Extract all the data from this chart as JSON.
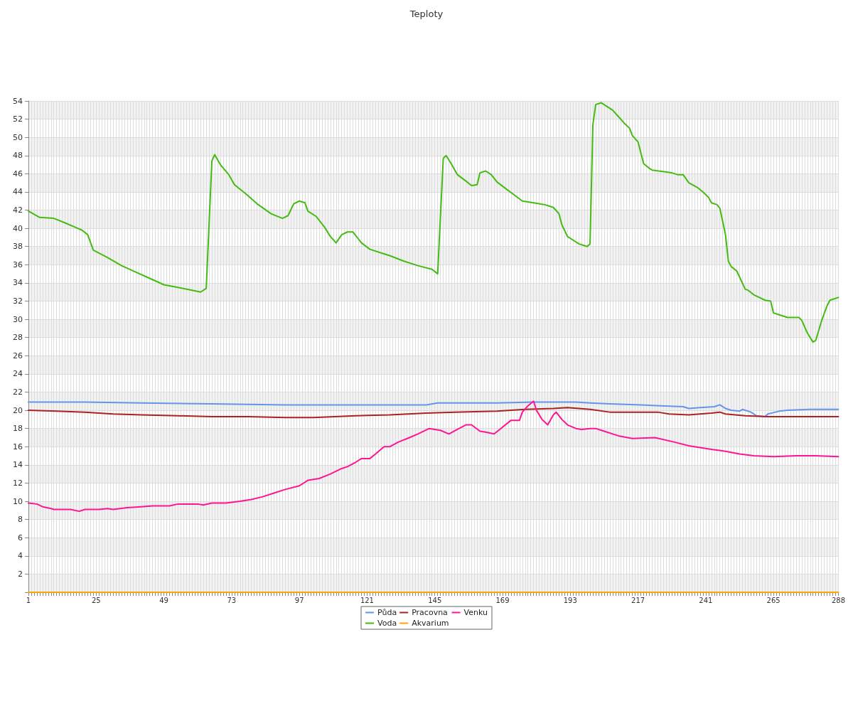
{
  "chart_data": {
    "type": "line",
    "title": "Teploty",
    "legend": "bottom",
    "grid": true,
    "marker": "none",
    "line_style": "solid",
    "xlim": [
      1,
      288
    ],
    "xticks": [
      1,
      {
        "value": 2,
        "label": null
      },
      {
        "value": 3,
        "label": null
      },
      {
        "value": 4,
        "label": null
      },
      {
        "value": 5,
        "label": null
      },
      {
        "value": 6,
        "label": null
      },
      {
        "value": 7,
        "label": null
      },
      {
        "value": 8,
        "label": null
      },
      {
        "value": 9,
        "label": null
      },
      {
        "value": 10,
        "label": null
      },
      {
        "value": 11,
        "label": null
      },
      {
        "value": 12,
        "label": null
      },
      {
        "value": 13,
        "label": null
      },
      {
        "value": 14,
        "label": null
      },
      {
        "value": 15,
        "label": null
      },
      {
        "value": 16,
        "label": null
      },
      {
        "value": 17,
        "label": null
      },
      {
        "value": 18,
        "label": null
      },
      {
        "value": 19,
        "label": null
      },
      {
        "value": 20,
        "label": null
      },
      {
        "value": 21,
        "label": null
      },
      {
        "value": 22,
        "label": null
      },
      {
        "value": 23,
        "label": null
      },
      {
        "value": 24,
        "label": null
      },
      25,
      {
        "value": 26,
        "label": null
      },
      {
        "value": 27,
        "label": null
      },
      {
        "value": 28,
        "label": null
      },
      {
        "value": 29,
        "label": null
      },
      {
        "value": 30,
        "label": null
      },
      {
        "value": 31,
        "label": null
      },
      {
        "value": 32,
        "label": null
      },
      {
        "value": 33,
        "label": null
      },
      {
        "value": 34,
        "label": null
      },
      {
        "value": 35,
        "label": null
      },
      {
        "value": 36,
        "label": null
      },
      {
        "value": 37,
        "label": null
      },
      {
        "value": 38,
        "label": null
      },
      {
        "value": 39,
        "label": null
      },
      {
        "value": 40,
        "label": null
      },
      {
        "value": 41,
        "label": null
      },
      {
        "value": 42,
        "label": null
      },
      {
        "value": 43,
        "label": null
      },
      {
        "value": 44,
        "label": null
      },
      {
        "value": 45,
        "label": null
      },
      {
        "value": 46,
        "label": null
      },
      {
        "value": 47,
        "label": null
      },
      {
        "value": 48,
        "label": null
      },
      49,
      {
        "value": 50,
        "label": null
      },
      {
        "value": 51,
        "label": null
      },
      {
        "value": 52,
        "label": null
      },
      {
        "value": 53,
        "label": null
      },
      {
        "value": 54,
        "label": null
      },
      {
        "value": 55,
        "label": null
      },
      {
        "value": 56,
        "label": null
      },
      {
        "value": 57,
        "label": null
      },
      {
        "value": 58,
        "label": null
      },
      {
        "value": 59,
        "label": null
      },
      {
        "value": 60,
        "label": null
      },
      {
        "value": 61,
        "label": null
      },
      {
        "value": 62,
        "label": null
      },
      {
        "value": 63,
        "label": null
      },
      {
        "value": 64,
        "label": null
      },
      {
        "value": 65,
        "label": null
      },
      {
        "value": 66,
        "label": null
      },
      {
        "value": 67,
        "label": null
      },
      {
        "value": 68,
        "label": null
      },
      {
        "value": 69,
        "label": null
      },
      {
        "value": 70,
        "label": null
      },
      {
        "value": 71,
        "label": null
      },
      {
        "value": 72,
        "label": null
      },
      73,
      {
        "value": 74,
        "label": null
      },
      {
        "value": 75,
        "label": null
      },
      {
        "value": 76,
        "label": null
      },
      {
        "value": 77,
        "label": null
      },
      {
        "value": 78,
        "label": null
      },
      {
        "value": 79,
        "label": null
      },
      {
        "value": 80,
        "label": null
      },
      {
        "value": 81,
        "label": null
      },
      {
        "value": 82,
        "label": null
      },
      {
        "value": 83,
        "label": null
      },
      {
        "value": 84,
        "label": null
      },
      {
        "value": 85,
        "label": null
      },
      {
        "value": 86,
        "label": null
      },
      {
        "value": 87,
        "label": null
      },
      {
        "value": 88,
        "label": null
      },
      {
        "value": 89,
        "label": null
      },
      {
        "value": 90,
        "label": null
      },
      {
        "value": 91,
        "label": null
      },
      {
        "value": 92,
        "label": null
      },
      {
        "value": 93,
        "label": null
      },
      {
        "value": 94,
        "label": null
      },
      {
        "value": 95,
        "label": null
      },
      {
        "value": 96,
        "label": null
      },
      97,
      {
        "value": 98,
        "label": null
      },
      {
        "value": 99,
        "label": null
      },
      {
        "value": 100,
        "label": null
      },
      {
        "value": 101,
        "label": null
      },
      {
        "value": 102,
        "label": null
      },
      {
        "value": 103,
        "label": null
      },
      {
        "value": 104,
        "label": null
      },
      {
        "value": 105,
        "label": null
      },
      {
        "value": 106,
        "label": null
      },
      {
        "value": 107,
        "label": null
      },
      {
        "value": 108,
        "label": null
      },
      {
        "value": 109,
        "label": null
      },
      {
        "value": 110,
        "label": null
      },
      {
        "value": 111,
        "label": null
      },
      {
        "value": 112,
        "label": null
      },
      {
        "value": 113,
        "label": null
      },
      {
        "value": 114,
        "label": null
      },
      {
        "value": 115,
        "label": null
      },
      {
        "value": 116,
        "label": null
      },
      {
        "value": 117,
        "label": null
      },
      {
        "value": 118,
        "label": null
      },
      {
        "value": 119,
        "label": null
      },
      {
        "value": 120,
        "label": null
      },
      121,
      {
        "value": 122,
        "label": null
      },
      {
        "value": 123,
        "label": null
      },
      {
        "value": 124,
        "label": null
      },
      {
        "value": 125,
        "label": null
      },
      {
        "value": 126,
        "label": null
      },
      {
        "value": 127,
        "label": null
      },
      {
        "value": 128,
        "label": null
      },
      {
        "value": 129,
        "label": null
      },
      {
        "value": 130,
        "label": null
      },
      {
        "value": 131,
        "label": null
      },
      {
        "value": 132,
        "label": null
      },
      {
        "value": 133,
        "label": null
      },
      {
        "value": 134,
        "label": null
      },
      {
        "value": 135,
        "label": null
      },
      {
        "value": 136,
        "label": null
      },
      {
        "value": 137,
        "label": null
      },
      {
        "value": 138,
        "label": null
      },
      {
        "value": 139,
        "label": null
      },
      {
        "value": 140,
        "label": null
      },
      {
        "value": 141,
        "label": null
      },
      {
        "value": 142,
        "label": null
      },
      {
        "value": 143,
        "label": null
      },
      {
        "value": 144,
        "label": null
      },
      145,
      {
        "value": 146,
        "label": null
      },
      {
        "value": 147,
        "label": null
      },
      {
        "value": 148,
        "label": null
      },
      {
        "value": 149,
        "label": null
      },
      {
        "value": 150,
        "label": null
      },
      {
        "value": 151,
        "label": null
      },
      {
        "value": 152,
        "label": null
      },
      {
        "value": 153,
        "label": null
      },
      {
        "value": 154,
        "label": null
      },
      {
        "value": 155,
        "label": null
      },
      {
        "value": 156,
        "label": null
      },
      {
        "value": 157,
        "label": null
      },
      {
        "value": 158,
        "label": null
      },
      {
        "value": 159,
        "label": null
      },
      {
        "value": 160,
        "label": null
      },
      {
        "value": 161,
        "label": null
      },
      {
        "value": 162,
        "label": null
      },
      {
        "value": 163,
        "label": null
      },
      {
        "value": 164,
        "label": null
      },
      {
        "value": 165,
        "label": null
      },
      {
        "value": 166,
        "label": null
      },
      {
        "value": 167,
        "label": null
      },
      {
        "value": 168,
        "label": null
      },
      169,
      {
        "value": 170,
        "label": null
      },
      {
        "value": 171,
        "label": null
      },
      {
        "value": 172,
        "label": null
      },
      {
        "value": 173,
        "label": null
      },
      {
        "value": 174,
        "label": null
      },
      {
        "value": 175,
        "label": null
      },
      {
        "value": 176,
        "label": null
      },
      {
        "value": 177,
        "label": null
      },
      {
        "value": 178,
        "label": null
      },
      {
        "value": 179,
        "label": null
      },
      {
        "value": 180,
        "label": null
      },
      {
        "value": 181,
        "label": null
      },
      {
        "value": 182,
        "label": null
      },
      {
        "value": 183,
        "label": null
      },
      {
        "value": 184,
        "label": null
      },
      {
        "value": 185,
        "label": null
      },
      {
        "value": 186,
        "label": null
      },
      {
        "value": 187,
        "label": null
      },
      {
        "value": 188,
        "label": null
      },
      {
        "value": 189,
        "label": null
      },
      {
        "value": 190,
        "label": null
      },
      {
        "value": 191,
        "label": null
      },
      {
        "value": 192,
        "label": null
      },
      193,
      {
        "value": 194,
        "label": null
      },
      {
        "value": 195,
        "label": null
      },
      {
        "value": 196,
        "label": null
      },
      {
        "value": 197,
        "label": null
      },
      {
        "value": 198,
        "label": null
      },
      {
        "value": 199,
        "label": null
      },
      {
        "value": 200,
        "label": null
      },
      {
        "value": 201,
        "label": null
      },
      {
        "value": 202,
        "label": null
      },
      {
        "value": 203,
        "label": null
      },
      {
        "value": 204,
        "label": null
      },
      {
        "value": 205,
        "label": null
      },
      {
        "value": 206,
        "label": null
      },
      {
        "value": 207,
        "label": null
      },
      {
        "value": 208,
        "label": null
      },
      {
        "value": 209,
        "label": null
      },
      {
        "value": 210,
        "label": null
      },
      {
        "value": 211,
        "label": null
      },
      {
        "value": 212,
        "label": null
      },
      {
        "value": 213,
        "label": null
      },
      {
        "value": 214,
        "label": null
      },
      {
        "value": 215,
        "label": null
      },
      {
        "value": 216,
        "label": null
      },
      217,
      {
        "value": 218,
        "label": null
      },
      {
        "value": 219,
        "label": null
      },
      {
        "value": 220,
        "label": null
      },
      {
        "value": 221,
        "label": null
      },
      {
        "value": 222,
        "label": null
      },
      {
        "value": 223,
        "label": null
      },
      {
        "value": 224,
        "label": null
      },
      {
        "value": 225,
        "label": null
      },
      {
        "value": 226,
        "label": null
      },
      {
        "value": 227,
        "label": null
      },
      {
        "value": 228,
        "label": null
      },
      {
        "value": 229,
        "label": null
      },
      {
        "value": 230,
        "label": null
      },
      {
        "value": 231,
        "label": null
      },
      {
        "value": 232,
        "label": null
      },
      {
        "value": 233,
        "label": null
      },
      {
        "value": 234,
        "label": null
      },
      {
        "value": 235,
        "label": null
      },
      {
        "value": 236,
        "label": null
      },
      {
        "value": 237,
        "label": null
      },
      {
        "value": 238,
        "label": null
      },
      {
        "value": 239,
        "label": null
      },
      {
        "value": 240,
        "label": null
      },
      241,
      {
        "value": 242,
        "label": null
      },
      {
        "value": 243,
        "label": null
      },
      {
        "value": 244,
        "label": null
      },
      {
        "value": 245,
        "label": null
      },
      {
        "value": 246,
        "label": null
      },
      {
        "value": 247,
        "label": null
      },
      {
        "value": 248,
        "label": null
      },
      {
        "value": 249,
        "label": null
      },
      {
        "value": 250,
        "label": null
      },
      {
        "value": 251,
        "label": null
      },
      {
        "value": 252,
        "label": null
      },
      {
        "value": 253,
        "label": null
      },
      {
        "value": 254,
        "label": null
      },
      {
        "value": 255,
        "label": null
      },
      {
        "value": 256,
        "label": null
      },
      {
        "value": 257,
        "label": null
      },
      {
        "value": 258,
        "label": null
      },
      {
        "value": 259,
        "label": null
      },
      {
        "value": 260,
        "label": null
      },
      {
        "value": 261,
        "label": null
      },
      {
        "value": 262,
        "label": null
      },
      {
        "value": 263,
        "label": null
      },
      {
        "value": 264,
        "label": null
      },
      265,
      {
        "value": 266,
        "label": null
      },
      {
        "value": 267,
        "label": null
      },
      {
        "value": 268,
        "label": null
      },
      {
        "value": 269,
        "label": null
      },
      {
        "value": 270,
        "label": null
      },
      {
        "value": 271,
        "label": null
      },
      {
        "value": 272,
        "label": null
      },
      {
        "value": 273,
        "label": null
      },
      {
        "value": 274,
        "label": null
      },
      {
        "value": 275,
        "label": null
      },
      {
        "value": 276,
        "label": null
      },
      {
        "value": 277,
        "label": null
      },
      {
        "value": 278,
        "label": null
      },
      {
        "value": 279,
        "label": null
      },
      {
        "value": 280,
        "label": null
      },
      {
        "value": 281,
        "label": null
      },
      {
        "value": 282,
        "label": null
      },
      {
        "value": 283,
        "label": null
      },
      {
        "value": 284,
        "label": null
      },
      {
        "value": 285,
        "label": null
      },
      {
        "value": 286,
        "label": null
      },
      {
        "value": 287,
        "label": null
      },
      288
    ],
    "ylim": [
      0,
      54
    ],
    "yticks": [
      {
        "value": 0,
        "label": null
      },
      2,
      4,
      6,
      8,
      10,
      12,
      14,
      16,
      18,
      20,
      22,
      24,
      26,
      28,
      30,
      32,
      34,
      36,
      38,
      40,
      42,
      44,
      46,
      48,
      50,
      52,
      54
    ],
    "series": [
      {
        "name": "Půda",
        "color": "#6495ed",
        "x": [
          1,
          21,
          41,
          66,
          92,
          142,
          146,
          167,
          180,
          195,
          200,
          207,
          218,
          225,
          233,
          235,
          239,
          244,
          246,
          248,
          250,
          253,
          254,
          257,
          259,
          262,
          263,
          267,
          270,
          278,
          288
        ],
        "values": [
          20.9,
          20.9,
          20.8,
          20.7,
          20.6,
          20.6,
          20.8,
          20.8,
          20.9,
          20.9,
          20.8,
          20.7,
          20.6,
          20.5,
          20.4,
          20.2,
          20.3,
          20.4,
          20.6,
          20.2,
          20.0,
          19.9,
          20.1,
          19.8,
          19.4,
          19.3,
          19.6,
          19.9,
          20.0,
          20.1,
          20.1
        ]
      },
      {
        "name": "Voda",
        "color": "#44bb11",
        "x": [
          1,
          5,
          10,
          14,
          17,
          20,
          22,
          24,
          29,
          34,
          39,
          44,
          49,
          54,
          59,
          62,
          64,
          66,
          67,
          69,
          72,
          74,
          78,
          82,
          87,
          91,
          93,
          95,
          97,
          99,
          100,
          103,
          106,
          108,
          110,
          112,
          114,
          116,
          118,
          119,
          122,
          126,
          129,
          134,
          139,
          144,
          146,
          148,
          149,
          151,
          153,
          156,
          158,
          160,
          161,
          163,
          165,
          167,
          170,
          173,
          176,
          180,
          184,
          187,
          189,
          190,
          192,
          194,
          196,
          199,
          200,
          201,
          202,
          204,
          208,
          210,
          212,
          214,
          215,
          217,
          218,
          219,
          221,
          222,
          229,
          231,
          233,
          235,
          238,
          240,
          242,
          243,
          245,
          246,
          248,
          249,
          250,
          252,
          255,
          256,
          258,
          260,
          262,
          264,
          265,
          267,
          270,
          274,
          275,
          277,
          279,
          280,
          282,
          284,
          285,
          288
        ],
        "values": [
          41.9,
          41.2,
          41.1,
          40.6,
          40.2,
          39.8,
          39.3,
          37.6,
          36.8,
          35.9,
          35.2,
          34.5,
          33.8,
          33.5,
          33.2,
          33.0,
          33.4,
          47.4,
          48.1,
          47.0,
          45.9,
          44.8,
          43.8,
          42.7,
          41.6,
          41.1,
          41.4,
          42.7,
          43.0,
          42.8,
          41.9,
          41.3,
          40.1,
          39.1,
          38.4,
          39.3,
          39.6,
          39.6,
          38.8,
          38.4,
          37.7,
          37.3,
          37.0,
          36.4,
          35.9,
          35.5,
          35.0,
          47.7,
          48.0,
          47.0,
          45.9,
          45.2,
          44.7,
          44.8,
          46.1,
          46.3,
          45.9,
          45.1,
          44.4,
          43.7,
          43.0,
          42.8,
          42.6,
          42.3,
          41.6,
          40.4,
          39.1,
          38.7,
          38.3,
          38.0,
          38.3,
          51.4,
          53.6,
          53.8,
          53.0,
          52.3,
          51.6,
          51.0,
          50.2,
          49.5,
          48.3,
          47.1,
          46.6,
          46.4,
          46.1,
          45.9,
          45.9,
          45.0,
          44.5,
          44.0,
          43.4,
          42.8,
          42.6,
          42.2,
          39.3,
          36.4,
          35.8,
          35.3,
          33.3,
          33.2,
          32.7,
          32.4,
          32.1,
          32.0,
          30.7,
          30.5,
          30.2,
          30.2,
          29.9,
          28.5,
          27.5,
          27.7,
          29.8,
          31.5,
          32.1,
          32.4
        ]
      },
      {
        "name": "Pracovna",
        "color": "#aa2222",
        "x": [
          1,
          11,
          21,
          31,
          41,
          54,
          66,
          79,
          92,
          102,
          117,
          129,
          142,
          152,
          167,
          177,
          187,
          192,
          200,
          207,
          218,
          224,
          228,
          235,
          243,
          246,
          248,
          255,
          263,
          273,
          288
        ],
        "values": [
          20.0,
          19.9,
          19.8,
          19.6,
          19.5,
          19.4,
          19.3,
          19.3,
          19.2,
          19.2,
          19.4,
          19.5,
          19.7,
          19.8,
          19.9,
          20.1,
          20.2,
          20.3,
          20.1,
          19.8,
          19.8,
          19.8,
          19.6,
          19.5,
          19.7,
          19.8,
          19.6,
          19.4,
          19.3,
          19.3,
          19.3
        ]
      },
      {
        "name": "Akvarium",
        "color": "#ffa500",
        "x": [
          1,
          288
        ],
        "values": [
          0,
          0
        ]
      },
      {
        "name": "Venku",
        "color": "#ff1493",
        "x": [
          1,
          4,
          6,
          9,
          10,
          16,
          19,
          21,
          26,
          29,
          31,
          36,
          41,
          45,
          51,
          54,
          61,
          63,
          66,
          71,
          76,
          80,
          84,
          88,
          92,
          97,
          100,
          104,
          108,
          112,
          114,
          117,
          119,
          122,
          124,
          127,
          129,
          132,
          136,
          139,
          143,
          147,
          150,
          153,
          156,
          158,
          161,
          163,
          166,
          168,
          172,
          175,
          176,
          178,
          180,
          181,
          183,
          185,
          187,
          188,
          190,
          192,
          195,
          197,
          200,
          202,
          205,
          210,
          215,
          223,
          230,
          235,
          243,
          248,
          253,
          258,
          265,
          273,
          280,
          288
        ],
        "values": [
          9.8,
          9.7,
          9.4,
          9.2,
          9.1,
          9.1,
          8.9,
          9.1,
          9.1,
          9.2,
          9.1,
          9.3,
          9.4,
          9.5,
          9.5,
          9.7,
          9.7,
          9.6,
          9.8,
          9.8,
          10.0,
          10.2,
          10.5,
          10.9,
          11.3,
          11.7,
          12.3,
          12.5,
          13.0,
          13.6,
          13.8,
          14.3,
          14.7,
          14.7,
          15.2,
          16.0,
          16.0,
          16.5,
          17.0,
          17.4,
          18.0,
          17.8,
          17.4,
          17.9,
          18.4,
          18.4,
          17.7,
          17.6,
          17.4,
          17.9,
          18.9,
          18.9,
          19.8,
          20.5,
          21.0,
          20.0,
          19.0,
          18.4,
          19.5,
          19.8,
          19.0,
          18.4,
          18.0,
          17.9,
          18.0,
          18.0,
          17.7,
          17.2,
          16.9,
          17.0,
          16.5,
          16.1,
          15.7,
          15.5,
          15.2,
          15.0,
          14.9,
          15.0,
          15.0,
          14.9
        ]
      }
    ]
  }
}
